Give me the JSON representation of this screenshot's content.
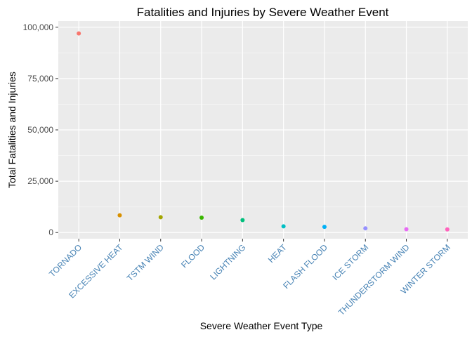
{
  "chart_data": {
    "type": "scatter",
    "title": "Fatalities and Injuries by Severe Weather Event",
    "xlabel": "Severe Weather Event Type",
    "ylabel": "Total Fatalities and Injuries",
    "ylim": [
      -3000,
      103000
    ],
    "yticks": [
      0,
      25000,
      50000,
      75000,
      100000
    ],
    "ytick_labels": [
      "0",
      "25,000",
      "50,000",
      "75,000",
      "100,000"
    ],
    "categories": [
      "TORNADO",
      "EXCESSIVE HEAT",
      "TSTM WIND",
      "FLOOD",
      "LIGHTNING",
      "HEAT",
      "FLASH FLOOD",
      "ICE STORM",
      "THUNDERSTORM WIND",
      "WINTER STORM"
    ],
    "values": [
      96979,
      8428,
      7461,
      7259,
      6046,
      3037,
      2755,
      2064,
      1621,
      1527
    ],
    "point_colors": [
      "#F8766D",
      "#D89000",
      "#A3A500",
      "#39B600",
      "#00BF7D",
      "#00BFC4",
      "#00B0F6",
      "#9590FF",
      "#E76BF3",
      "#FF62BC"
    ],
    "tick_label_color": "#4682B4",
    "panel_background": "#EBEBEB",
    "grid": true,
    "legend": "none"
  }
}
